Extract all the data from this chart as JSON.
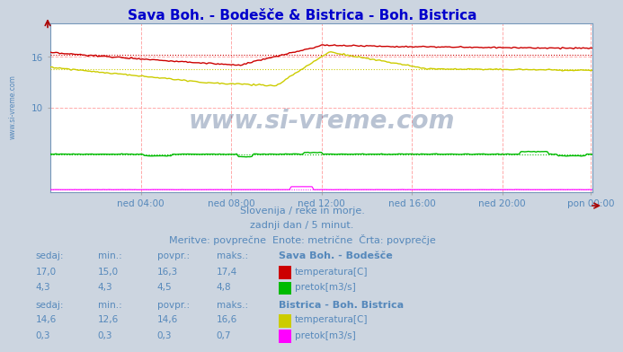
{
  "title": "Sava Boh. - Bodešče & Bistrica - Boh. Bistrica",
  "title_color": "#0000cc",
  "title_fontsize": 11,
  "bg_color": "#ccd5e0",
  "plot_bg_color": "#ffffff",
  "grid_color": "#ffaaaa",
  "watermark": "www.si-vreme.com",
  "watermark_color": "#1a3a6e",
  "watermark_alpha": 0.3,
  "tick_label_color": "#5588bb",
  "subtitle_lines": [
    "Slovenija / reke in morje.",
    "zadnji dan / 5 minut.",
    "Meritve: povprečne  Enote: metrične  Črta: povprečje"
  ],
  "subtitle_color": "#5588bb",
  "subtitle_fontsize": 8,
  "x_tick_labels": [
    "ned 04:00",
    "ned 08:00",
    "ned 12:00",
    "ned 16:00",
    "ned 20:00",
    "pon 00:00"
  ],
  "n_points": 289,
  "ylim_min": 0,
  "ylim_max": 20,
  "sava_temp_color": "#cc0000",
  "sava_pretok_color": "#00bb00",
  "bistrica_temp_color": "#cccc00",
  "bistrica_pretok_color": "#ff00ff",
  "avg_linestyle": "dotted",
  "sava_temp_avg": 16.3,
  "sava_pretok_avg": 4.5,
  "bistrica_temp_avg": 14.6,
  "bistrica_pretok_avg": 0.3,
  "sava_temp_sedaj": "17,0",
  "sava_temp_min": "15,0",
  "sava_temp_povpr": "16,3",
  "sava_temp_maks": "17,4",
  "sava_pretok_sedaj": "4,3",
  "sava_pretok_min": "4,3",
  "sava_pretok_povpr": "4,5",
  "sava_pretok_maks": "4,8",
  "bistrica_temp_sedaj": "14,6",
  "bistrica_temp_min": "12,6",
  "bistrica_temp_povpr": "14,6",
  "bistrica_temp_maks": "16,6",
  "bistrica_pretok_sedaj": "0,3",
  "bistrica_pretok_min": "0,3",
  "bistrica_pretok_povpr": "0,3",
  "bistrica_pretok_maks": "0,7"
}
